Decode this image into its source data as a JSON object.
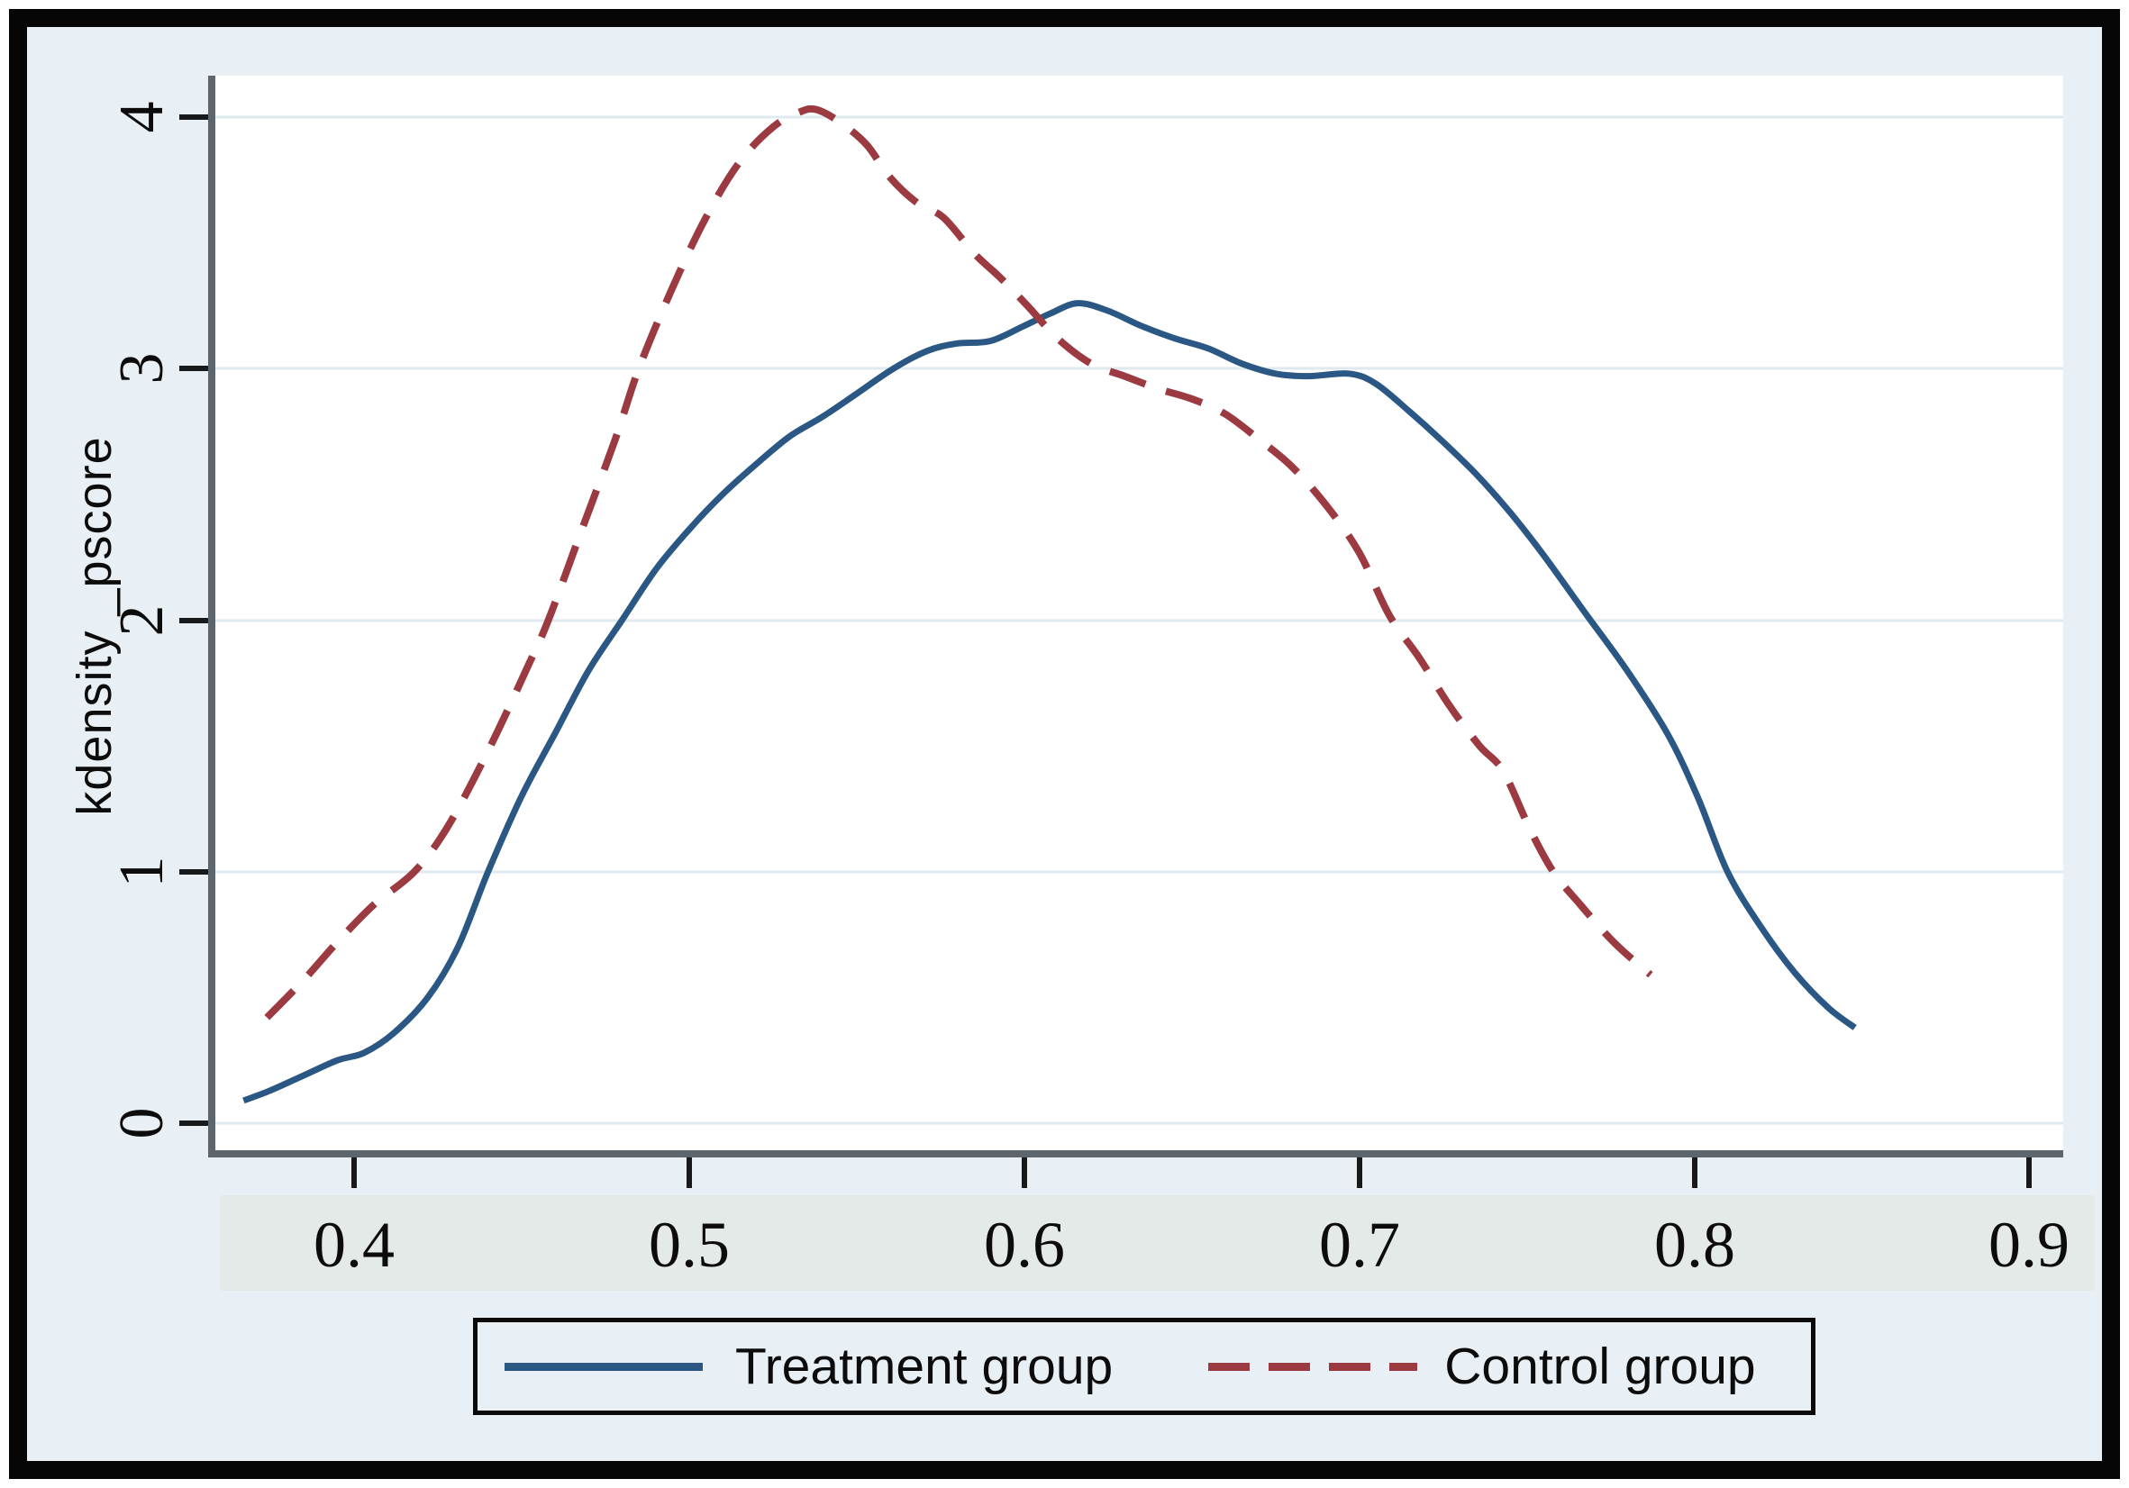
{
  "figure": {
    "y_axis_title": "kdensity _pscore",
    "y_ticks": [
      "0",
      "1",
      "2",
      "3",
      "4"
    ],
    "x_ticks": [
      "0.4",
      "0.5",
      "0.6",
      "0.7",
      "0.8",
      "0.9"
    ],
    "legend": {
      "treatment_label": "Treatment group",
      "control_label": "Control group"
    },
    "colors": {
      "treatment_line": "#2a5783",
      "control_line": "#9c3a42",
      "margin_background": "#e9f0f5",
      "xtick_band_background": "#e4eae7",
      "plot_background": "#ffffff",
      "gridline": "#dfeaf0",
      "axis_line": "#5c666c",
      "tick_mark": "#17191a"
    }
  },
  "chart_data": {
    "type": "line",
    "title": "",
    "xlabel": "",
    "ylabel": "kdensity _pscore",
    "xlim": [
      0.357,
      0.91
    ],
    "ylim": [
      0,
      4.16
    ],
    "x_tick_values": [
      0.4,
      0.5,
      0.6,
      0.7,
      0.8,
      0.9
    ],
    "y_tick_values": [
      0,
      1,
      2,
      3,
      4
    ],
    "grid": "horizontal gridlines at integer y values",
    "legend_position": "bottom",
    "series": [
      {
        "name": "Treatment group",
        "style": "solid",
        "color": "#2a5783",
        "points": [
          [
            0.367,
            0.09
          ],
          [
            0.375,
            0.13
          ],
          [
            0.385,
            0.19
          ],
          [
            0.395,
            0.25
          ],
          [
            0.403,
            0.28
          ],
          [
            0.412,
            0.36
          ],
          [
            0.422,
            0.5
          ],
          [
            0.431,
            0.7
          ],
          [
            0.44,
            1.0
          ],
          [
            0.45,
            1.3
          ],
          [
            0.46,
            1.55
          ],
          [
            0.47,
            1.8
          ],
          [
            0.48,
            2.0
          ],
          [
            0.49,
            2.2
          ],
          [
            0.5,
            2.36
          ],
          [
            0.51,
            2.5
          ],
          [
            0.52,
            2.62
          ],
          [
            0.53,
            2.73
          ],
          [
            0.54,
            2.81
          ],
          [
            0.55,
            2.9
          ],
          [
            0.561,
            3.0
          ],
          [
            0.571,
            3.07
          ],
          [
            0.58,
            3.1
          ],
          [
            0.59,
            3.11
          ],
          [
            0.6,
            3.17
          ],
          [
            0.608,
            3.22
          ],
          [
            0.616,
            3.26
          ],
          [
            0.625,
            3.23
          ],
          [
            0.635,
            3.17
          ],
          [
            0.645,
            3.12
          ],
          [
            0.655,
            3.08
          ],
          [
            0.665,
            3.02
          ],
          [
            0.675,
            2.98
          ],
          [
            0.685,
            2.97
          ],
          [
            0.697,
            2.98
          ],
          [
            0.705,
            2.94
          ],
          [
            0.715,
            2.83
          ],
          [
            0.725,
            2.71
          ],
          [
            0.735,
            2.58
          ],
          [
            0.745,
            2.43
          ],
          [
            0.755,
            2.26
          ],
          [
            0.768,
            2.02
          ],
          [
            0.78,
            1.8
          ],
          [
            0.792,
            1.55
          ],
          [
            0.801,
            1.3
          ],
          [
            0.81,
            1.0
          ],
          [
            0.82,
            0.78
          ],
          [
            0.83,
            0.6
          ],
          [
            0.84,
            0.46
          ],
          [
            0.848,
            0.38
          ]
        ]
      },
      {
        "name": "Control group",
        "style": "dashed",
        "color": "#9c3a42",
        "points": [
          [
            0.374,
            0.42
          ],
          [
            0.385,
            0.57
          ],
          [
            0.395,
            0.72
          ],
          [
            0.406,
            0.87
          ],
          [
            0.418,
            1.0
          ],
          [
            0.428,
            1.18
          ],
          [
            0.44,
            1.48
          ],
          [
            0.452,
            1.82
          ],
          [
            0.458,
            2.0
          ],
          [
            0.468,
            2.36
          ],
          [
            0.478,
            2.72
          ],
          [
            0.485,
            3.0
          ],
          [
            0.495,
            3.32
          ],
          [
            0.505,
            3.6
          ],
          [
            0.515,
            3.82
          ],
          [
            0.525,
            3.96
          ],
          [
            0.533,
            4.02
          ],
          [
            0.538,
            4.03
          ],
          [
            0.545,
            3.98
          ],
          [
            0.553,
            3.89
          ],
          [
            0.56,
            3.76
          ],
          [
            0.568,
            3.66
          ],
          [
            0.576,
            3.6
          ],
          [
            0.585,
            3.46
          ],
          [
            0.593,
            3.36
          ],
          [
            0.601,
            3.25
          ],
          [
            0.61,
            3.12
          ],
          [
            0.62,
            3.02
          ],
          [
            0.63,
            2.97
          ],
          [
            0.64,
            2.92
          ],
          [
            0.65,
            2.88
          ],
          [
            0.66,
            2.82
          ],
          [
            0.67,
            2.72
          ],
          [
            0.68,
            2.61
          ],
          [
            0.69,
            2.46
          ],
          [
            0.7,
            2.27
          ],
          [
            0.709,
            2.02
          ],
          [
            0.718,
            1.85
          ],
          [
            0.727,
            1.66
          ],
          [
            0.736,
            1.5
          ],
          [
            0.743,
            1.4
          ],
          [
            0.751,
            1.17
          ],
          [
            0.758,
            1.0
          ],
          [
            0.766,
            0.87
          ],
          [
            0.776,
            0.72
          ],
          [
            0.787,
            0.59
          ]
        ]
      }
    ]
  }
}
